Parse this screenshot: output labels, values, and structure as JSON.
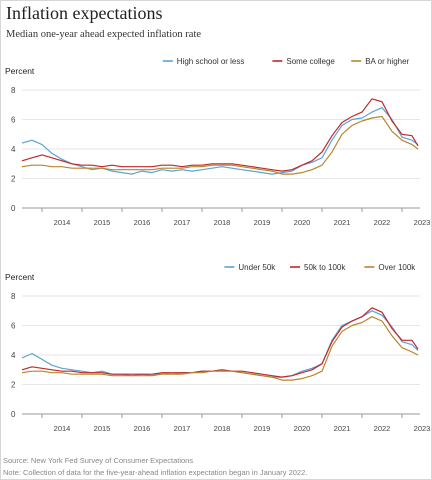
{
  "title": "Inflation expectations",
  "subtitle": "Median one-year ahead expected inflation rate",
  "source": "Source: New York Fed Survey of Consumer Expectations",
  "note": "Note: Collection of data for the five-year-ahead inflation expectation began in January 2022.",
  "colors": {
    "blue": "#5ba4d6",
    "red": "#c0292b",
    "gold": "#b8862a",
    "grid": "#e6e6e6",
    "axis": "#555555"
  },
  "chart_data": [
    {
      "type": "line",
      "ylabel": "Percent",
      "ylim": [
        0,
        8
      ],
      "yticks": [
        0,
        2,
        4,
        6,
        8
      ],
      "xlim": [
        2013.5,
        2023.45
      ],
      "xticks": [
        "2014",
        "2015",
        "2016",
        "2017",
        "2018",
        "2019",
        "2020",
        "2021",
        "2022",
        "2023"
      ],
      "legend_position": "top-right",
      "series": [
        {
          "name": "High school or less",
          "color": "blue",
          "x": [
            2013.5,
            2013.75,
            2014.0,
            2014.25,
            2014.5,
            2014.75,
            2015.0,
            2015.25,
            2015.5,
            2015.75,
            2016.0,
            2016.25,
            2016.5,
            2016.75,
            2017.0,
            2017.25,
            2017.5,
            2017.75,
            2018.0,
            2018.25,
            2018.5,
            2018.75,
            2019.0,
            2019.25,
            2019.5,
            2019.75,
            2020.0,
            2020.25,
            2020.5,
            2020.75,
            2021.0,
            2021.25,
            2021.5,
            2021.75,
            2022.0,
            2022.25,
            2022.5,
            2022.75,
            2023.0,
            2023.25,
            2023.4
          ],
          "y": [
            4.4,
            4.6,
            4.3,
            3.7,
            3.3,
            3.0,
            2.8,
            2.6,
            2.7,
            2.5,
            2.4,
            2.3,
            2.5,
            2.4,
            2.6,
            2.5,
            2.6,
            2.5,
            2.6,
            2.7,
            2.8,
            2.7,
            2.6,
            2.5,
            2.4,
            2.3,
            2.4,
            2.5,
            2.9,
            3.1,
            3.4,
            4.6,
            5.6,
            6.0,
            6.1,
            6.5,
            6.8,
            6.0,
            4.8,
            4.6,
            4.3
          ]
        },
        {
          "name": "Some college",
          "color": "red",
          "x": [
            2013.5,
            2013.75,
            2014.0,
            2014.25,
            2014.5,
            2014.75,
            2015.0,
            2015.25,
            2015.5,
            2015.75,
            2016.0,
            2016.25,
            2016.5,
            2016.75,
            2017.0,
            2017.25,
            2017.5,
            2017.75,
            2018.0,
            2018.25,
            2018.5,
            2018.75,
            2019.0,
            2019.25,
            2019.5,
            2019.75,
            2020.0,
            2020.25,
            2020.5,
            2020.75,
            2021.0,
            2021.25,
            2021.5,
            2021.75,
            2022.0,
            2022.25,
            2022.5,
            2022.75,
            2023.0,
            2023.25,
            2023.4
          ],
          "y": [
            3.2,
            3.4,
            3.6,
            3.4,
            3.2,
            3.0,
            2.9,
            2.9,
            2.8,
            2.9,
            2.8,
            2.8,
            2.8,
            2.8,
            2.9,
            2.9,
            2.8,
            2.9,
            2.9,
            3.0,
            3.0,
            3.0,
            2.9,
            2.8,
            2.7,
            2.6,
            2.5,
            2.6,
            2.9,
            3.2,
            3.8,
            4.9,
            5.8,
            6.2,
            6.5,
            7.4,
            7.2,
            5.9,
            5.0,
            4.9,
            4.2
          ]
        },
        {
          "name": "BA or higher",
          "color": "gold",
          "x": [
            2013.5,
            2013.75,
            2014.0,
            2014.25,
            2014.5,
            2014.75,
            2015.0,
            2015.25,
            2015.5,
            2015.75,
            2016.0,
            2016.25,
            2016.5,
            2016.75,
            2017.0,
            2017.25,
            2017.5,
            2017.75,
            2018.0,
            2018.25,
            2018.5,
            2018.75,
            2019.0,
            2019.25,
            2019.5,
            2019.75,
            2020.0,
            2020.25,
            2020.5,
            2020.75,
            2021.0,
            2021.25,
            2021.5,
            2021.75,
            2022.0,
            2022.25,
            2022.5,
            2022.75,
            2023.0,
            2023.25,
            2023.4
          ],
          "y": [
            2.8,
            2.9,
            2.9,
            2.8,
            2.8,
            2.7,
            2.7,
            2.7,
            2.7,
            2.6,
            2.6,
            2.6,
            2.6,
            2.6,
            2.7,
            2.7,
            2.7,
            2.8,
            2.8,
            2.9,
            2.9,
            2.9,
            2.8,
            2.7,
            2.6,
            2.5,
            2.3,
            2.3,
            2.4,
            2.6,
            2.9,
            3.8,
            5.0,
            5.6,
            5.9,
            6.1,
            6.2,
            5.2,
            4.6,
            4.3,
            4.0
          ]
        }
      ]
    },
    {
      "type": "line",
      "ylabel": "Percent",
      "ylim": [
        0,
        8
      ],
      "yticks": [
        0,
        2,
        4,
        6,
        8
      ],
      "xlim": [
        2013.5,
        2023.45
      ],
      "xticks": [
        "2014",
        "2015",
        "2016",
        "2017",
        "2018",
        "2019",
        "2020",
        "2021",
        "2022",
        "2023"
      ],
      "legend_position": "top-right",
      "series": [
        {
          "name": "Under 50k",
          "color": "blue",
          "x": [
            2013.5,
            2013.75,
            2014.0,
            2014.25,
            2014.5,
            2014.75,
            2015.0,
            2015.25,
            2015.5,
            2015.75,
            2016.0,
            2016.25,
            2016.5,
            2016.75,
            2017.0,
            2017.25,
            2017.5,
            2017.75,
            2018.0,
            2018.25,
            2018.5,
            2018.75,
            2019.0,
            2019.25,
            2019.5,
            2019.75,
            2020.0,
            2020.25,
            2020.5,
            2020.75,
            2021.0,
            2021.25,
            2021.5,
            2021.75,
            2022.0,
            2022.25,
            2022.5,
            2022.75,
            2023.0,
            2023.25,
            2023.4
          ],
          "y": [
            3.8,
            4.1,
            3.7,
            3.3,
            3.1,
            3.0,
            2.9,
            2.8,
            2.9,
            2.7,
            2.7,
            2.6,
            2.7,
            2.6,
            2.8,
            2.7,
            2.8,
            2.8,
            2.9,
            2.9,
            3.0,
            2.9,
            2.8,
            2.7,
            2.6,
            2.5,
            2.5,
            2.6,
            2.9,
            3.1,
            3.4,
            5.0,
            6.0,
            6.3,
            6.6,
            7.0,
            6.7,
            5.9,
            4.9,
            4.7,
            4.3
          ]
        },
        {
          "name": "50k to 100k",
          "color": "red",
          "x": [
            2013.5,
            2013.75,
            2014.0,
            2014.25,
            2014.5,
            2014.75,
            2015.0,
            2015.25,
            2015.5,
            2015.75,
            2016.0,
            2016.25,
            2016.5,
            2016.75,
            2017.0,
            2017.25,
            2017.5,
            2017.75,
            2018.0,
            2018.25,
            2018.5,
            2018.75,
            2019.0,
            2019.25,
            2019.5,
            2019.75,
            2020.0,
            2020.25,
            2020.5,
            2020.75,
            2021.0,
            2021.25,
            2021.5,
            2021.75,
            2022.0,
            2022.25,
            2022.5,
            2022.75,
            2023.0,
            2023.25,
            2023.4
          ],
          "y": [
            3.0,
            3.2,
            3.1,
            3.0,
            2.9,
            2.9,
            2.8,
            2.8,
            2.8,
            2.7,
            2.7,
            2.7,
            2.7,
            2.7,
            2.8,
            2.8,
            2.8,
            2.8,
            2.9,
            2.9,
            3.0,
            2.9,
            2.9,
            2.8,
            2.7,
            2.6,
            2.5,
            2.6,
            2.8,
            3.0,
            3.4,
            4.9,
            5.9,
            6.3,
            6.6,
            7.2,
            6.9,
            5.8,
            5.0,
            5.0,
            4.4
          ]
        },
        {
          "name": "Over 100k",
          "color": "gold",
          "x": [
            2013.5,
            2013.75,
            2014.0,
            2014.25,
            2014.5,
            2014.75,
            2015.0,
            2015.25,
            2015.5,
            2015.75,
            2016.0,
            2016.25,
            2016.5,
            2016.75,
            2017.0,
            2017.25,
            2017.5,
            2017.75,
            2018.0,
            2018.25,
            2018.5,
            2018.75,
            2019.0,
            2019.25,
            2019.5,
            2019.75,
            2020.0,
            2020.25,
            2020.5,
            2020.75,
            2021.0,
            2021.25,
            2021.5,
            2021.75,
            2022.0,
            2022.25,
            2022.5,
            2022.75,
            2023.0,
            2023.25,
            2023.4
          ],
          "y": [
            2.8,
            2.9,
            2.9,
            2.8,
            2.8,
            2.7,
            2.7,
            2.7,
            2.7,
            2.6,
            2.6,
            2.6,
            2.6,
            2.6,
            2.7,
            2.7,
            2.7,
            2.8,
            2.8,
            2.9,
            2.9,
            2.9,
            2.8,
            2.7,
            2.6,
            2.5,
            2.3,
            2.3,
            2.4,
            2.6,
            2.9,
            4.6,
            5.6,
            6.0,
            6.2,
            6.6,
            6.3,
            5.3,
            4.5,
            4.2,
            4.0
          ]
        }
      ]
    }
  ]
}
